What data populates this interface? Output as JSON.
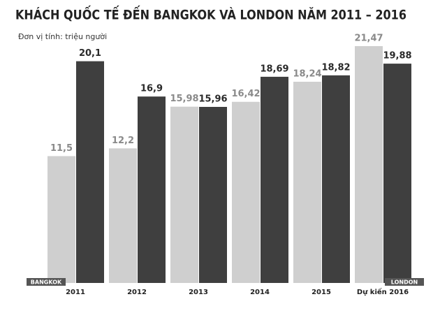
{
  "chart_data": {
    "type": "bar",
    "title": "KHÁCH QUỐC TẾ ĐẾN BANGKOK VÀ LONDON NĂM 2011 – 2016",
    "subtitle": "Đơn vị tính: triệu người",
    "categories": [
      "2011",
      "2012",
      "2013",
      "2014",
      "2015",
      "Dự kiến 2016"
    ],
    "series": [
      {
        "name": "BANGKOK",
        "color": "#cfcfcf",
        "values": [
          11.5,
          12.2,
          15.98,
          16.42,
          18.24,
          21.47
        ],
        "value_labels": [
          "11,5",
          "12,2",
          "15,98",
          "16,42",
          "18,24",
          "21,47"
        ]
      },
      {
        "name": "LONDON",
        "color": "#3f3f3f",
        "values": [
          20.1,
          16.9,
          15.96,
          18.69,
          18.82,
          19.88
        ],
        "value_labels": [
          "20,1",
          "16,9",
          "15,96",
          "18,69",
          "18,82",
          "19,88"
        ]
      }
    ]
  }
}
